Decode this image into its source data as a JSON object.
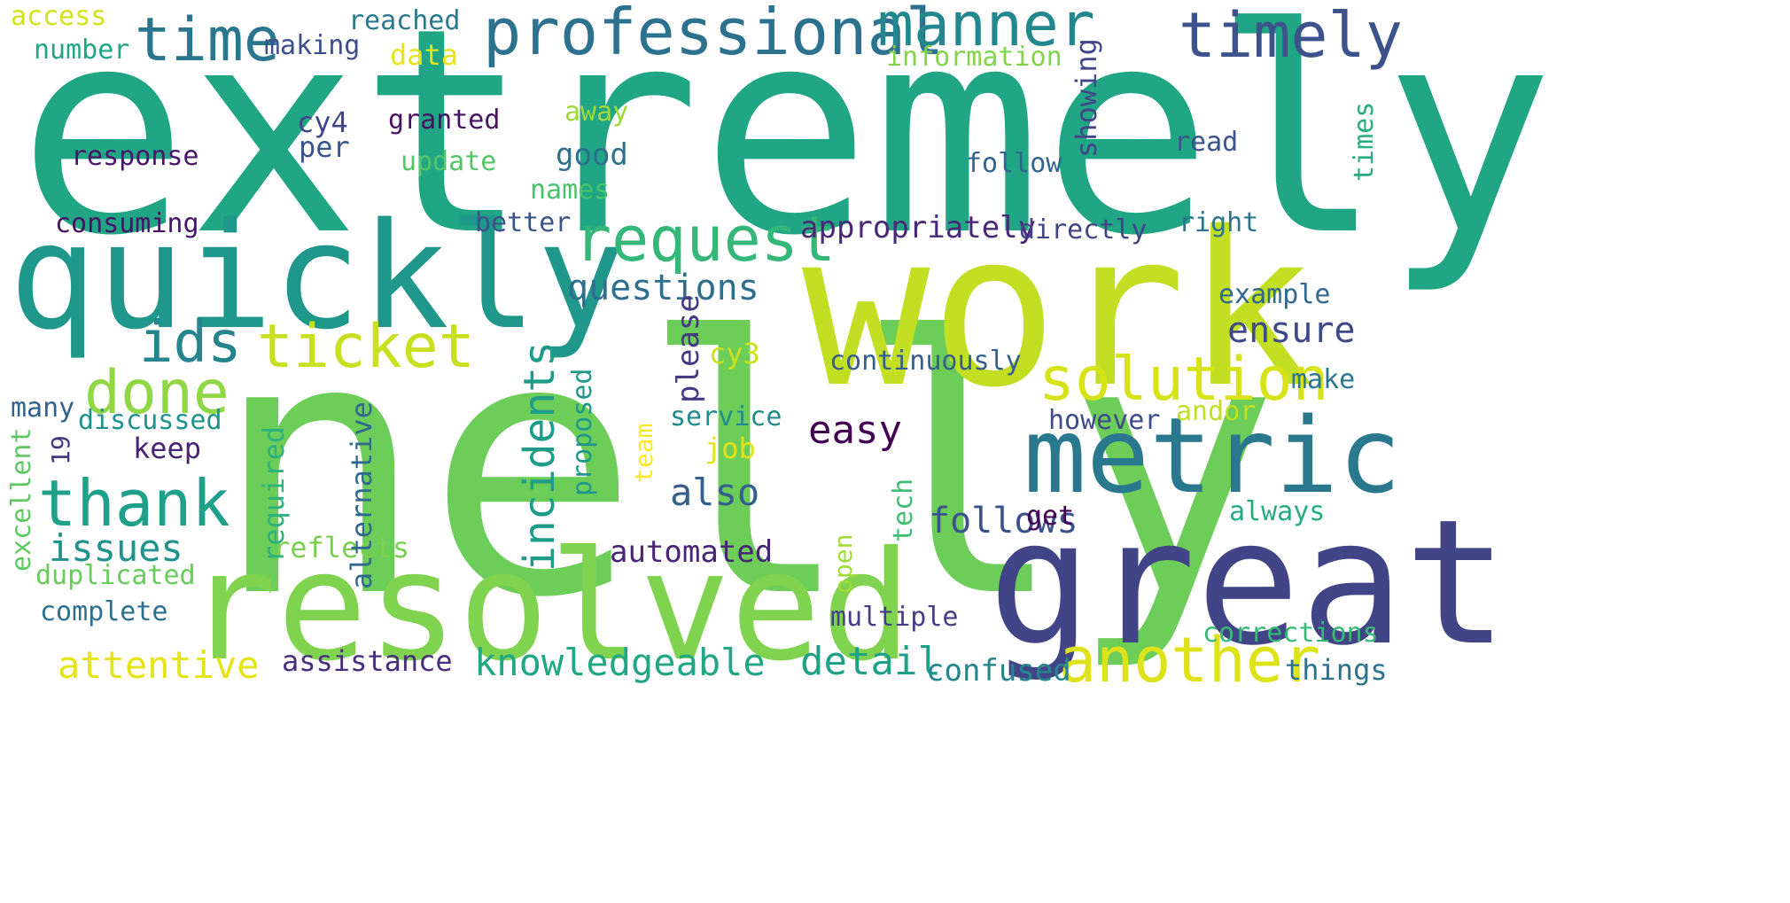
{
  "words": [
    {
      "id": "extremely",
      "text": "extremely",
      "color": "#21a685"
    },
    {
      "id": "nelly",
      "text": "nelly",
      "color": "#6ccd59"
    },
    {
      "id": "work",
      "text": "work",
      "color": "#c2df23"
    },
    {
      "id": "quickly",
      "text": "quickly",
      "color": "#1f978b"
    },
    {
      "id": "resolved",
      "text": "resolved",
      "color": "#7fd34e"
    },
    {
      "id": "great",
      "text": "great",
      "color": "#414487"
    },
    {
      "id": "metric",
      "text": "metric",
      "color": "#2a788e"
    },
    {
      "id": "professional",
      "text": "professional",
      "color": "#2c728e"
    },
    {
      "id": "manner",
      "text": "manner",
      "color": "#23888e"
    },
    {
      "id": "timely",
      "text": "timely",
      "color": "#3b528b"
    },
    {
      "id": "time",
      "text": "time",
      "color": "#2a768e"
    },
    {
      "id": "request",
      "text": "request",
      "color": "#35b779"
    },
    {
      "id": "ticket",
      "text": "ticket",
      "color": "#c8e020"
    },
    {
      "id": "ids",
      "text": "ids",
      "color": "#25848e"
    },
    {
      "id": "done",
      "text": "done",
      "color": "#8fd744"
    },
    {
      "id": "thank",
      "text": "thank",
      "color": "#1fa088"
    },
    {
      "id": "solution",
      "text": "solution",
      "color": "#d8e219"
    },
    {
      "id": "another",
      "text": "another",
      "color": "#dde318"
    },
    {
      "id": "knowledgeable",
      "text": "knowledgeable",
      "color": "#22a785"
    },
    {
      "id": "attentive",
      "text": "attentive",
      "color": "#e5e419"
    },
    {
      "id": "detail",
      "text": "detail",
      "color": "#1fa187"
    },
    {
      "id": "questions",
      "text": "questions",
      "color": "#2e6f8e"
    },
    {
      "id": "issues",
      "text": "issues",
      "color": "#20928c"
    },
    {
      "id": "incidents",
      "text": "incidents",
      "color": "#1e9c89"
    },
    {
      "id": "follows",
      "text": "follows",
      "color": "#3b528b"
    },
    {
      "id": "easy",
      "text": "easy",
      "color": "#440154"
    },
    {
      "id": "also",
      "text": "also",
      "color": "#355f8d"
    },
    {
      "id": "ensure",
      "text": "ensure",
      "color": "#3e4989"
    },
    {
      "id": "appropriately",
      "text": "appropriately",
      "color": "#482878"
    },
    {
      "id": "automated",
      "text": "automated",
      "color": "#482475"
    },
    {
      "id": "confused",
      "text": "confused",
      "color": "#25858e"
    },
    {
      "id": "assistance",
      "text": "assistance",
      "color": "#472f7d"
    },
    {
      "id": "complete",
      "text": "complete",
      "color": "#2d708e"
    },
    {
      "id": "corrections",
      "text": "corrections",
      "color": "#38b977"
    },
    {
      "id": "things",
      "text": "things",
      "color": "#2c728e"
    },
    {
      "id": "multiple",
      "text": "multiple",
      "color": "#433e85"
    },
    {
      "id": "duplicated",
      "text": "duplicated",
      "color": "#67cc5c"
    },
    {
      "id": "excellent",
      "text": "excellent",
      "color": "#5ec962"
    },
    {
      "id": "reflects",
      "text": "reflects",
      "color": "#7ad151"
    },
    {
      "id": "required",
      "text": "required",
      "color": "#2db27d"
    },
    {
      "id": "alternative",
      "text": "alternative",
      "color": "#31688e"
    },
    {
      "id": "proposed",
      "text": "proposed",
      "color": "#1f988b"
    },
    {
      "id": "please",
      "text": "please",
      "color": "#443983"
    },
    {
      "id": "team",
      "text": "team",
      "color": "#fde725"
    },
    {
      "id": "job",
      "text": "job",
      "color": "#e2e418"
    },
    {
      "id": "service",
      "text": "service",
      "color": "#238a8d"
    },
    {
      "id": "cy3",
      "text": "cy3",
      "color": "#cde11d"
    },
    {
      "id": "continuously",
      "text": "continuously",
      "color": "#355e8d"
    },
    {
      "id": "however",
      "text": "however",
      "color": "#3e4a89"
    },
    {
      "id": "andor",
      "text": "andor",
      "color": "#c0df25"
    },
    {
      "id": "make",
      "text": "make",
      "color": "#2a778e"
    },
    {
      "id": "get",
      "text": "get",
      "color": "#440154"
    },
    {
      "id": "always",
      "text": "always",
      "color": "#25ab82"
    },
    {
      "id": "tech",
      "text": "tech",
      "color": "#40bd72"
    },
    {
      "id": "open",
      "text": "open",
      "color": "#a2da37"
    },
    {
      "id": "example",
      "text": "example",
      "color": "#31688e"
    },
    {
      "id": "keep",
      "text": "keep",
      "color": "#482475"
    },
    {
      "id": "many",
      "text": "many",
      "color": "#33638d"
    },
    {
      "id": "discussed",
      "text": "discussed",
      "color": "#20928c"
    },
    {
      "id": "19",
      "text": "19",
      "color": "#453781"
    },
    {
      "id": "consuming",
      "text": "consuming",
      "color": "#471365"
    },
    {
      "id": "better",
      "text": "better",
      "color": "#3b528b"
    },
    {
      "id": "directly",
      "text": "directly",
      "color": "#414487"
    },
    {
      "id": "right",
      "text": "right",
      "color": "#2c738e"
    },
    {
      "id": "names",
      "text": "names",
      "color": "#4ac16d"
    },
    {
      "id": "update",
      "text": "update",
      "color": "#54c568"
    },
    {
      "id": "good",
      "text": "good",
      "color": "#2d708e"
    },
    {
      "id": "per",
      "text": "per",
      "color": "#3a548c"
    },
    {
      "id": "response",
      "text": "response",
      "color": "#481668"
    },
    {
      "id": "cy4",
      "text": "cy4",
      "color": "#3f4788"
    },
    {
      "id": "granted",
      "text": "granted",
      "color": "#471164"
    },
    {
      "id": "away",
      "text": "away",
      "color": "#a0da39"
    },
    {
      "id": "follow",
      "text": "follow",
      "color": "#32658e"
    },
    {
      "id": "read",
      "text": "read",
      "color": "#3b528b"
    },
    {
      "id": "times",
      "text": "times",
      "color": "#26ad81"
    },
    {
      "id": "showing",
      "text": "showing",
      "color": "#404688"
    },
    {
      "id": "information",
      "text": "information",
      "color": "#84d44b"
    },
    {
      "id": "data",
      "text": "data",
      "color": "#e7e419"
    },
    {
      "id": "making",
      "text": "making",
      "color": "#3d4e8a"
    },
    {
      "id": "number",
      "text": "number",
      "color": "#21a585"
    },
    {
      "id": "reached",
      "text": "reached",
      "color": "#2a788e"
    },
    {
      "id": "access",
      "text": "access",
      "color": "#d2e21b"
    }
  ]
}
